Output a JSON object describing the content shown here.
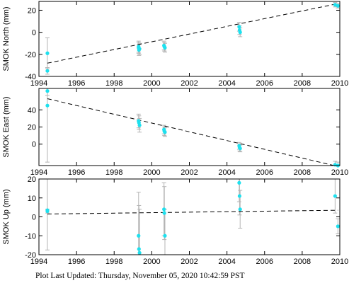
{
  "footer": {
    "label": "Plot Last Updated:",
    "timestamp": "Thursday, November 05, 2020 10:42:59 PST"
  },
  "colors": {
    "points": "#1ee0ee",
    "error_bars": "#b4b4b4",
    "trend": "#000000"
  },
  "chart_data": [
    {
      "type": "scatter",
      "ylabel": "SMOK North (mm)",
      "xlim": [
        1994,
        2010
      ],
      "ylim": [
        -40,
        28
      ],
      "xticks": [
        1994,
        1996,
        1998,
        2000,
        2002,
        2004,
        2006,
        2008,
        2010
      ],
      "yticks": [
        -40,
        -20,
        0,
        20
      ],
      "points": [
        {
          "x": 1994.45,
          "y": -19,
          "err": 14
        },
        {
          "x": 1994.45,
          "y": -35,
          "err": 3
        },
        {
          "x": 1999.3,
          "y": -13,
          "err": 5
        },
        {
          "x": 1999.3,
          "y": -14,
          "err": 5
        },
        {
          "x": 1999.32,
          "y": -16,
          "err": 5
        },
        {
          "x": 1999.35,
          "y": -15,
          "err": 5
        },
        {
          "x": 2000.65,
          "y": -12,
          "err": 4
        },
        {
          "x": 2000.67,
          "y": -13,
          "err": 4
        },
        {
          "x": 2000.7,
          "y": -14,
          "err": 4
        },
        {
          "x": 2004.65,
          "y": 5,
          "err": 4
        },
        {
          "x": 2004.67,
          "y": 2,
          "err": 4
        },
        {
          "x": 2004.7,
          "y": 0,
          "err": 4
        },
        {
          "x": 2009.75,
          "y": 25,
          "err": 2
        },
        {
          "x": 2009.9,
          "y": 24,
          "err": 2
        }
      ],
      "trend": [
        [
          1994.45,
          -28
        ],
        [
          2009.9,
          26
        ]
      ]
    },
    {
      "type": "scatter",
      "ylabel": "SMOK East (mm)",
      "xlim": [
        1994,
        2010
      ],
      "ylim": [
        -25,
        65
      ],
      "xticks": [
        1994,
        1996,
        1998,
        2000,
        2002,
        2004,
        2006,
        2008,
        2010
      ],
      "yticks": [
        0,
        20,
        40
      ],
      "points": [
        {
          "x": 1994.45,
          "y": 62,
          "err": 5
        },
        {
          "x": 1994.45,
          "y": 45,
          "err": 66
        },
        {
          "x": 1999.3,
          "y": 27,
          "err": 8
        },
        {
          "x": 1999.32,
          "y": 25,
          "err": 8
        },
        {
          "x": 1999.35,
          "y": 22,
          "err": 8
        },
        {
          "x": 2000.65,
          "y": 17,
          "err": 5
        },
        {
          "x": 2000.67,
          "y": 15,
          "err": 5
        },
        {
          "x": 2000.7,
          "y": 14,
          "err": 5
        },
        {
          "x": 2004.65,
          "y": -2,
          "err": 4
        },
        {
          "x": 2004.67,
          "y": -4,
          "err": 4
        },
        {
          "x": 2004.7,
          "y": -5,
          "err": 4
        },
        {
          "x": 2009.75,
          "y": -24,
          "err": 4
        },
        {
          "x": 2009.9,
          "y": -25,
          "err": 4
        }
      ],
      "trend": [
        [
          1994.45,
          53
        ],
        [
          2009.9,
          -26
        ]
      ]
    },
    {
      "type": "scatter",
      "ylabel": "SMOK Up (mm)",
      "xlim": [
        1994,
        2010
      ],
      "ylim": [
        -20,
        20
      ],
      "xticks": [
        1994,
        1996,
        1998,
        2000,
        2002,
        2004,
        2006,
        2008,
        2010
      ],
      "yticks": [
        -20,
        -10,
        0,
        10,
        20
      ],
      "points": [
        {
          "x": 1994.45,
          "y": 3.5,
          "err": 21
        },
        {
          "x": 1994.45,
          "y": 3,
          "err": 1
        },
        {
          "x": 1999.3,
          "y": -10,
          "err": 23
        },
        {
          "x": 1999.32,
          "y": -17,
          "err": 23
        },
        {
          "x": 1999.35,
          "y": -19,
          "err": 23
        },
        {
          "x": 2000.65,
          "y": 4,
          "err": 14
        },
        {
          "x": 2000.67,
          "y": 2,
          "err": 14
        },
        {
          "x": 2000.7,
          "y": -10,
          "err": 14
        },
        {
          "x": 2004.65,
          "y": 18,
          "err": 10
        },
        {
          "x": 2004.67,
          "y": 11,
          "err": 10
        },
        {
          "x": 2004.7,
          "y": 4,
          "err": 10
        },
        {
          "x": 2009.75,
          "y": 11,
          "err": 9
        },
        {
          "x": 2009.9,
          "y": -5,
          "err": 4
        }
      ],
      "trend": [
        [
          1994.45,
          1.5
        ],
        [
          2009.9,
          3.5
        ]
      ]
    }
  ]
}
